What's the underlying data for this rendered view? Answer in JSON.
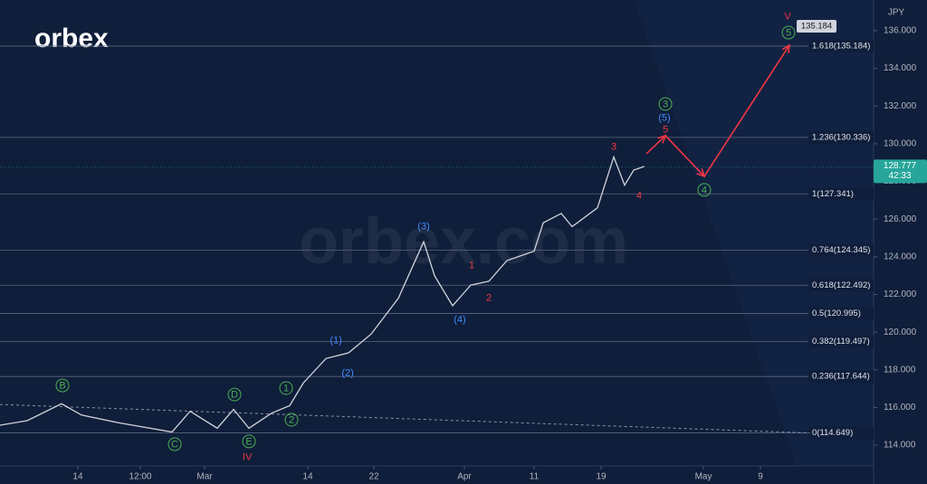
{
  "chart_data": {
    "type": "line",
    "logo": "orbex",
    "watermark": "orbex.com",
    "currency": "JPY",
    "xlim": [
      0,
      100
    ],
    "ylim": [
      112.9,
      137.63
    ],
    "xticks": [
      {
        "value": 8.91,
        "label": "14"
      },
      {
        "value": 16.06,
        "label": "12:00"
      },
      {
        "value": 23.42,
        "label": "Mar"
      },
      {
        "value": 35.23,
        "label": "14"
      },
      {
        "value": 42.8,
        "label": "22"
      },
      {
        "value": 53.16,
        "label": "Apr"
      },
      {
        "value": 61.14,
        "label": "11"
      },
      {
        "value": 68.81,
        "label": "19"
      },
      {
        "value": 80.52,
        "label": "May"
      },
      {
        "value": 87.05,
        "label": "9"
      }
    ],
    "yticks": [
      {
        "value": 114,
        "label": "114.000"
      },
      {
        "value": 116,
        "label": "116.000"
      },
      {
        "value": 118,
        "label": "118.000"
      },
      {
        "value": 120,
        "label": "120.000"
      },
      {
        "value": 122,
        "label": "122.000"
      },
      {
        "value": 124,
        "label": "124.000"
      },
      {
        "value": 126,
        "label": "126.000"
      },
      {
        "value": 128,
        "label": "128.000"
      },
      {
        "value": 130,
        "label": "130.000"
      },
      {
        "value": 132,
        "label": "132.000"
      },
      {
        "value": 134,
        "label": "134.000"
      },
      {
        "value": 136,
        "label": "136.000"
      }
    ],
    "series": [
      {
        "color": "#d1d4dc",
        "x": [
          0,
          3.11,
          7.05,
          9.33,
          13.47,
          19.69,
          21.76,
          24.87,
          26.74,
          28.5,
          31.09,
          33.16,
          34.72,
          37.31,
          39.9,
          42.49,
          45.6,
          48.5,
          49.74,
          51.81,
          53.89,
          55.96,
          58.03,
          61.14,
          62.18,
          64.25,
          65.49,
          68.39,
          70.26,
          71.5,
          72.54,
          73.78
        ],
        "values": [
          115.06,
          115.3,
          116.2,
          115.6,
          115.2,
          114.7,
          115.8,
          114.9,
          115.9,
          114.9,
          115.7,
          116.1,
          117.3,
          118.6,
          118.9,
          119.9,
          121.8,
          124.8,
          123.0,
          121.4,
          122.5,
          122.7,
          123.8,
          124.3,
          125.8,
          126.3,
          125.6,
          126.6,
          129.3,
          127.8,
          128.6,
          128.8
        ]
      },
      {
        "color": "#f23645",
        "x": [
          74.0,
          76.17,
          80.62,
          90.36
        ],
        "values": [
          129.47,
          130.43,
          128.27,
          135.23
        ]
      }
    ],
    "trendline": {
      "x": [
        0,
        92.7
      ],
      "values": [
        116.16,
        114.65
      ]
    },
    "fib_levels": [
      {
        "value": 135.184,
        "label": "1.618(135.184)"
      },
      {
        "value": 130.336,
        "label": "1.236(130.336)"
      },
      {
        "value": 127.341,
        "label": "1(127.341)"
      },
      {
        "value": 124.345,
        "label": "0.764(124.345)"
      },
      {
        "value": 122.492,
        "label": "0.618(122.492)"
      },
      {
        "value": 120.995,
        "label": "0.5(120.995)"
      },
      {
        "value": 119.497,
        "label": "0.382(119.497)"
      },
      {
        "value": 117.644,
        "label": "0.236(117.644)"
      },
      {
        "value": 114.649,
        "label": "0(114.649)"
      }
    ],
    "waves": [
      {
        "text": "B",
        "x": 7.15,
        "y": 117.17,
        "color": "#4caf50",
        "circle": true
      },
      {
        "text": "C",
        "x": 20.0,
        "y": 114.05,
        "color": "#4caf50",
        "circle": true
      },
      {
        "text": "D",
        "x": 26.84,
        "y": 116.69,
        "color": "#4caf50",
        "circle": true
      },
      {
        "text": "E",
        "x": 28.5,
        "y": 114.2,
        "color": "#4caf50",
        "circle": true
      },
      {
        "text": "IV",
        "x": 28.3,
        "y": 113.38,
        "color": "#f23645",
        "circle": false
      },
      {
        "text": "1",
        "x": 32.75,
        "y": 117.03,
        "color": "#4caf50",
        "circle": true
      },
      {
        "text": "2",
        "x": 33.37,
        "y": 115.35,
        "color": "#4caf50",
        "circle": true
      },
      {
        "text": "(1)",
        "x": 38.45,
        "y": 119.57,
        "color": "#448aff",
        "circle": false
      },
      {
        "text": "(2)",
        "x": 39.8,
        "y": 117.84,
        "color": "#448aff",
        "circle": false
      },
      {
        "text": "(3)",
        "x": 48.5,
        "y": 125.63,
        "color": "#448aff",
        "circle": false
      },
      {
        "text": "(4)",
        "x": 52.64,
        "y": 120.68,
        "color": "#448aff",
        "circle": false
      },
      {
        "text": "1",
        "x": 54.0,
        "y": 123.56,
        "color": "#f23645",
        "circle": false
      },
      {
        "text": "2",
        "x": 55.96,
        "y": 121.83,
        "color": "#f23645",
        "circle": false
      },
      {
        "text": "3",
        "x": 70.26,
        "y": 129.85,
        "color": "#f23645",
        "circle": false
      },
      {
        "text": "4",
        "x": 73.16,
        "y": 127.26,
        "color": "#f23645",
        "circle": false
      },
      {
        "text": "5",
        "x": 76.17,
        "y": 130.76,
        "color": "#f23645",
        "circle": false
      },
      {
        "text": "(5)",
        "x": 76.06,
        "y": 131.39,
        "color": "#448aff",
        "circle": false
      },
      {
        "text": "3",
        "x": 76.17,
        "y": 132.11,
        "color": "#4caf50",
        "circle": true
      },
      {
        "text": "4",
        "x": 80.62,
        "y": 127.55,
        "color": "#4caf50",
        "circle": true
      },
      {
        "text": "5",
        "x": 90.26,
        "y": 135.9,
        "color": "#4caf50",
        "circle": true
      },
      {
        "text": "V",
        "x": 90.16,
        "y": 136.77,
        "color": "#f23645",
        "circle": false
      }
    ],
    "last_price": 128.777,
    "countdown": "42:33",
    "target": 135.184
  }
}
